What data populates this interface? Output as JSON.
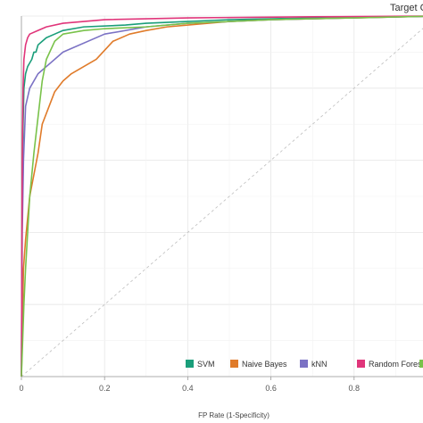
{
  "chart_data": {
    "type": "line",
    "title": "Target C",
    "xlabel": "FP Rate (1-Specificity)",
    "ylabel": "",
    "xlim": [
      0,
      1
    ],
    "ylim": [
      0,
      1
    ],
    "x_ticks": [
      "0",
      "0.2",
      "0.4",
      "0.6",
      "0.8"
    ],
    "grid": true,
    "legend_position": "bottom-right",
    "diagonal": true,
    "series": [
      {
        "name": "SVM",
        "color": "#1a9e7a",
        "points": [
          [
            0,
            0
          ],
          [
            0.002,
            0.55
          ],
          [
            0.004,
            0.7
          ],
          [
            0.006,
            0.8
          ],
          [
            0.01,
            0.84
          ],
          [
            0.015,
            0.86
          ],
          [
            0.02,
            0.87
          ],
          [
            0.025,
            0.88
          ],
          [
            0.03,
            0.9
          ],
          [
            0.035,
            0.9
          ],
          [
            0.04,
            0.92
          ],
          [
            0.05,
            0.93
          ],
          [
            0.06,
            0.94
          ],
          [
            0.08,
            0.95
          ],
          [
            0.1,
            0.96
          ],
          [
            0.15,
            0.97
          ],
          [
            0.25,
            0.975
          ],
          [
            0.3,
            0.98
          ],
          [
            0.4,
            0.985
          ],
          [
            0.5,
            0.99
          ],
          [
            0.7,
            0.995
          ],
          [
            0.9,
            0.998
          ],
          [
            1,
            1
          ]
        ]
      },
      {
        "name": "Naive Bayes",
        "color": "#e07b2a",
        "points": [
          [
            0,
            0
          ],
          [
            0.005,
            0.3
          ],
          [
            0.01,
            0.38
          ],
          [
            0.015,
            0.44
          ],
          [
            0.02,
            0.5
          ],
          [
            0.03,
            0.56
          ],
          [
            0.04,
            0.62
          ],
          [
            0.05,
            0.7
          ],
          [
            0.06,
            0.73
          ],
          [
            0.07,
            0.76
          ],
          [
            0.08,
            0.79
          ],
          [
            0.1,
            0.82
          ],
          [
            0.12,
            0.84
          ],
          [
            0.15,
            0.86
          ],
          [
            0.18,
            0.88
          ],
          [
            0.22,
            0.93
          ],
          [
            0.26,
            0.95
          ],
          [
            0.3,
            0.96
          ],
          [
            0.35,
            0.97
          ],
          [
            0.4,
            0.975
          ],
          [
            0.5,
            0.985
          ],
          [
            0.6,
            0.99
          ],
          [
            0.8,
            0.995
          ],
          [
            1,
            1
          ]
        ]
      },
      {
        "name": "kNN",
        "color": "#7b72c4",
        "points": [
          [
            0,
            0
          ],
          [
            0.002,
            0.4
          ],
          [
            0.005,
            0.6
          ],
          [
            0.01,
            0.75
          ],
          [
            0.02,
            0.8
          ],
          [
            0.04,
            0.84
          ],
          [
            0.06,
            0.86
          ],
          [
            0.1,
            0.9
          ],
          [
            0.2,
            0.95
          ],
          [
            0.3,
            0.97
          ],
          [
            0.4,
            0.98
          ],
          [
            0.6,
            0.99
          ],
          [
            1,
            1
          ]
        ]
      },
      {
        "name": "Random Forest",
        "color": "#e0357a",
        "points": [
          [
            0,
            0
          ],
          [
            0.002,
            0.6
          ],
          [
            0.004,
            0.8
          ],
          [
            0.006,
            0.88
          ],
          [
            0.01,
            0.92
          ],
          [
            0.015,
            0.94
          ],
          [
            0.02,
            0.95
          ],
          [
            0.04,
            0.96
          ],
          [
            0.06,
            0.97
          ],
          [
            0.1,
            0.98
          ],
          [
            0.2,
            0.99
          ],
          [
            0.4,
            0.995
          ],
          [
            0.7,
            0.998
          ],
          [
            1,
            1
          ]
        ]
      },
      {
        "name": "",
        "color": "#79c24a",
        "points": [
          [
            0,
            0
          ],
          [
            0.003,
            0.1
          ],
          [
            0.006,
            0.2
          ],
          [
            0.01,
            0.3
          ],
          [
            0.015,
            0.4
          ],
          [
            0.02,
            0.5
          ],
          [
            0.03,
            0.62
          ],
          [
            0.04,
            0.72
          ],
          [
            0.05,
            0.82
          ],
          [
            0.06,
            0.88
          ],
          [
            0.08,
            0.93
          ],
          [
            0.1,
            0.95
          ],
          [
            0.15,
            0.96
          ],
          [
            0.2,
            0.965
          ],
          [
            0.3,
            0.97
          ],
          [
            0.4,
            0.98
          ],
          [
            0.6,
            0.99
          ],
          [
            0.8,
            0.995
          ],
          [
            1,
            1
          ]
        ]
      }
    ]
  }
}
